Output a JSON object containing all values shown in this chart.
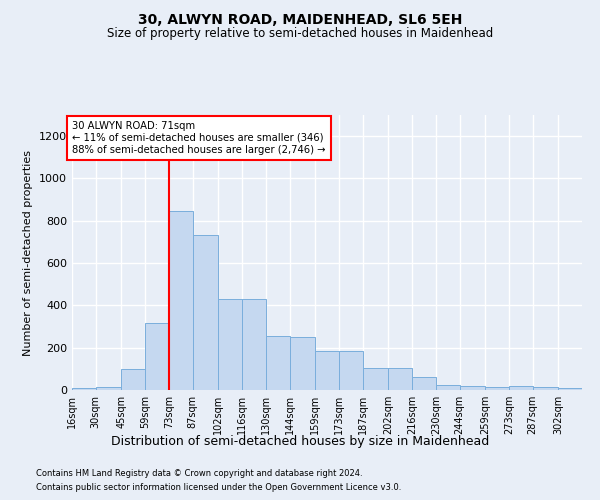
{
  "title": "30, ALWYN ROAD, MAIDENHEAD, SL6 5EH",
  "subtitle": "Size of property relative to semi-detached houses in Maidenhead",
  "xlabel": "Distribution of semi-detached houses by size in Maidenhead",
  "ylabel": "Number of semi-detached properties",
  "bin_labels": [
    "16sqm",
    "30sqm",
    "45sqm",
    "59sqm",
    "73sqm",
    "87sqm",
    "102sqm",
    "116sqm",
    "130sqm",
    "144sqm",
    "159sqm",
    "173sqm",
    "187sqm",
    "202sqm",
    "216sqm",
    "230sqm",
    "244sqm",
    "259sqm",
    "273sqm",
    "287sqm",
    "302sqm"
  ],
  "bar_values": [
    10,
    15,
    100,
    315,
    845,
    735,
    430,
    430,
    255,
    250,
    185,
    185,
    105,
    105,
    60,
    25,
    20,
    15,
    20,
    15,
    10
  ],
  "bin_edges": [
    16,
    30,
    45,
    59,
    73,
    87,
    102,
    116,
    130,
    144,
    159,
    173,
    187,
    202,
    216,
    230,
    244,
    259,
    273,
    287,
    302,
    316
  ],
  "bar_color": "#c5d8f0",
  "bar_edge_color": "#7aaedc",
  "vline_x": 73,
  "vline_color": "red",
  "annotation_text": "30 ALWYN ROAD: 71sqm\n← 11% of semi-detached houses are smaller (346)\n88% of semi-detached houses are larger (2,746) →",
  "annotation_box_color": "white",
  "annotation_box_edge": "red",
  "ylim": [
    0,
    1300
  ],
  "yticks": [
    0,
    200,
    400,
    600,
    800,
    1000,
    1200
  ],
  "bg_color": "#e8eef7",
  "grid_color": "white",
  "footer_line1": "Contains HM Land Registry data © Crown copyright and database right 2024.",
  "footer_line2": "Contains public sector information licensed under the Open Government Licence v3.0."
}
